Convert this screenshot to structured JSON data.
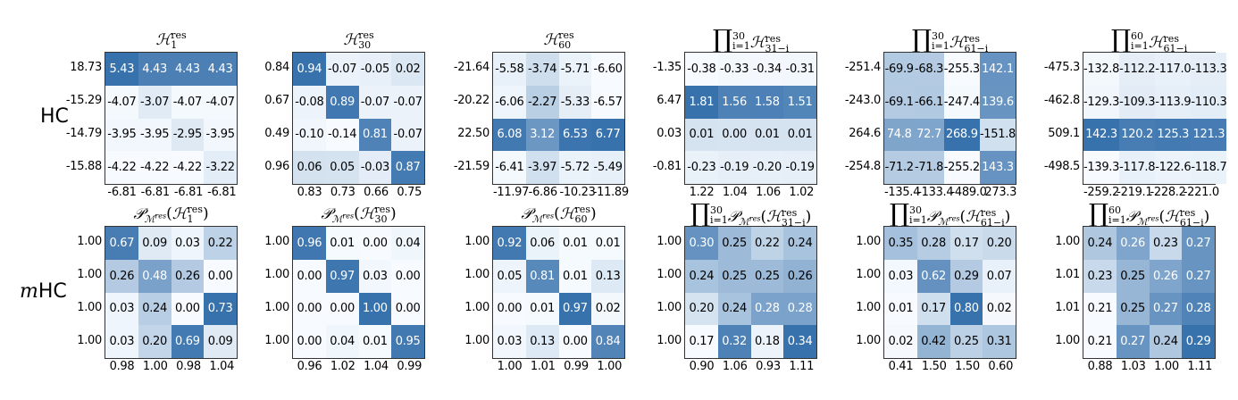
{
  "row_labels": {
    "top": "HC",
    "bottom_prefix": "m",
    "bottom": "HC"
  },
  "colors": {
    "min": "#f7fbff",
    "max": "#3872ad",
    "text_dark": "#000000",
    "text_light": "#ffffff"
  },
  "chart_data": [
    {
      "type": "heatmap",
      "row": "HC",
      "title": [
        {
          "b": "ℋ",
          "cal": true,
          "sub": "1",
          "sup": "res"
        }
      ],
      "row_labels": [
        "18.73",
        "-15.29",
        "-14.79",
        "-15.88"
      ],
      "col_labels": [
        "-6.81",
        "-6.81",
        "-6.81",
        "-6.81"
      ],
      "values": [
        [
          5.43,
          4.43,
          4.43,
          4.43
        ],
        [
          -4.07,
          -3.07,
          -4.07,
          -4.07
        ],
        [
          -3.95,
          -3.95,
          -2.95,
          -3.95
        ],
        [
          -4.22,
          -4.22,
          -4.22,
          -3.22
        ]
      ]
    },
    {
      "type": "heatmap",
      "row": "HC",
      "title": [
        {
          "b": "ℋ",
          "cal": true,
          "sub": "30",
          "sup": "res"
        }
      ],
      "row_labels": [
        "0.84",
        "0.67",
        "0.49",
        "0.96"
      ],
      "col_labels": [
        "0.83",
        "0.73",
        "0.66",
        "0.75"
      ],
      "values": [
        [
          0.94,
          -0.07,
          -0.05,
          0.02
        ],
        [
          -0.08,
          0.89,
          -0.07,
          -0.07
        ],
        [
          -0.1,
          -0.14,
          0.81,
          -0.07
        ],
        [
          0.06,
          0.05,
          -0.03,
          0.87
        ]
      ]
    },
    {
      "type": "heatmap",
      "row": "HC",
      "title": [
        {
          "b": "ℋ",
          "cal": true,
          "sub": "60",
          "sup": "res"
        }
      ],
      "row_labels": [
        "-21.64",
        "-20.22",
        "22.50",
        "-21.59"
      ],
      "col_labels": [
        "-11.97",
        "-6.86",
        "-10.23",
        "-11.89"
      ],
      "values": [
        [
          -5.58,
          -3.74,
          -5.71,
          -6.6
        ],
        [
          -6.06,
          -2.27,
          -5.33,
          -6.57
        ],
        [
          6.08,
          3.12,
          6.53,
          6.77
        ],
        [
          -6.41,
          -3.97,
          -5.72,
          -5.49
        ]
      ]
    },
    {
      "type": "heatmap",
      "row": "HC",
      "title": [
        {
          "b": "∏",
          "big": true,
          "sub": "i=1",
          "sup": "30"
        },
        {
          "b": "ℋ",
          "cal": true,
          "sub": "31−i",
          "sup": "res"
        }
      ],
      "row_labels": [
        "-1.35",
        "6.47",
        "0.03",
        "-0.81"
      ],
      "col_labels": [
        "1.22",
        "1.04",
        "1.06",
        "1.02"
      ],
      "values": [
        [
          -0.38,
          -0.33,
          -0.34,
          -0.31
        ],
        [
          1.81,
          1.56,
          1.58,
          1.51
        ],
        [
          0.01,
          -0.0,
          0.01,
          0.01
        ],
        [
          -0.23,
          -0.19,
          -0.2,
          -0.19
        ]
      ]
    },
    {
      "type": "heatmap",
      "row": "HC",
      "title": [
        {
          "b": "∏",
          "big": true,
          "sub": "i=1",
          "sup": "30"
        },
        {
          "b": "ℋ",
          "cal": true,
          "sub": "61−i",
          "sup": "res"
        }
      ],
      "row_labels": [
        "-251.4",
        "-243.0",
        "264.6",
        "-254.8"
      ],
      "col_labels": [
        "-135.4",
        "-133.4",
        "-489.0",
        "273.3"
      ],
      "values": [
        [
          -69.9,
          -68.3,
          -255.3,
          142.1
        ],
        [
          -69.1,
          -66.1,
          -247.4,
          139.6
        ],
        [
          74.8,
          72.7,
          268.9,
          -151.8
        ],
        [
          -71.2,
          -71.8,
          -255.2,
          143.3
        ]
      ]
    },
    {
      "type": "heatmap",
      "row": "HC",
      "title": [
        {
          "b": "∏",
          "big": true,
          "sub": "i=1",
          "sup": "60"
        },
        {
          "b": "ℋ",
          "cal": true,
          "sub": "61−i",
          "sup": "res"
        }
      ],
      "row_labels": [
        "-475.3",
        "-462.8",
        "509.1",
        "-498.5"
      ],
      "col_labels": [
        "-259.2",
        "-219.1",
        "-228.2",
        "-221.0"
      ],
      "values": [
        [
          -132.8,
          -112.2,
          -117.0,
          -113.3
        ],
        [
          -129.3,
          -109.3,
          -113.9,
          -110.3
        ],
        [
          142.3,
          120.2,
          125.3,
          121.3
        ],
        [
          -139.3,
          -117.8,
          -122.6,
          -118.7
        ]
      ]
    },
    {
      "type": "heatmap",
      "row": "mHC",
      "title": [
        {
          "b": "𝒫",
          "cal": true,
          "sub": "ℳ",
          "subsup": "res"
        },
        {
          "b": "("
        },
        {
          "b": "ℋ",
          "cal": true,
          "sub": "1",
          "sup": "res"
        },
        {
          "b": ")"
        }
      ],
      "row_labels": [
        "1.00",
        "1.00",
        "1.00",
        "1.00"
      ],
      "col_labels": [
        "0.98",
        "1.00",
        "0.98",
        "1.04"
      ],
      "values": [
        [
          0.67,
          0.09,
          0.03,
          0.22
        ],
        [
          0.26,
          0.48,
          0.26,
          0.0
        ],
        [
          0.03,
          0.24,
          0.0,
          0.73
        ],
        [
          0.03,
          0.2,
          0.69,
          0.09
        ]
      ]
    },
    {
      "type": "heatmap",
      "row": "mHC",
      "title": [
        {
          "b": "𝒫",
          "cal": true,
          "sub": "ℳ",
          "subsup": "res"
        },
        {
          "b": "("
        },
        {
          "b": "ℋ",
          "cal": true,
          "sub": "30",
          "sup": "res"
        },
        {
          "b": ")"
        }
      ],
      "row_labels": [
        "1.00",
        "1.00",
        "1.00",
        "1.00"
      ],
      "col_labels": [
        "0.96",
        "1.02",
        "1.04",
        "0.99"
      ],
      "values": [
        [
          0.96,
          0.01,
          0.0,
          0.04
        ],
        [
          0.0,
          0.97,
          0.03,
          0.0
        ],
        [
          0.0,
          0.0,
          1.0,
          0.0
        ],
        [
          0.0,
          0.04,
          0.01,
          0.95
        ]
      ]
    },
    {
      "type": "heatmap",
      "row": "mHC",
      "title": [
        {
          "b": "𝒫",
          "cal": true,
          "sub": "ℳ",
          "subsup": "res"
        },
        {
          "b": "("
        },
        {
          "b": "ℋ",
          "cal": true,
          "sub": "60",
          "sup": "res"
        },
        {
          "b": ")"
        }
      ],
      "row_labels": [
        "1.00",
        "1.00",
        "1.00",
        "1.00"
      ],
      "col_labels": [
        "1.00",
        "1.01",
        "0.99",
        "1.00"
      ],
      "values": [
        [
          0.92,
          0.06,
          0.01,
          0.01
        ],
        [
          0.05,
          0.81,
          0.01,
          0.13
        ],
        [
          0.0,
          0.01,
          0.97,
          0.02
        ],
        [
          0.03,
          0.13,
          0.0,
          0.84
        ]
      ]
    },
    {
      "type": "heatmap",
      "row": "mHC",
      "title": [
        {
          "b": "∏",
          "big": true,
          "sub": "i=1",
          "sup": "30"
        },
        {
          "b": "𝒫",
          "cal": true,
          "sub": "ℳ",
          "subsup": "res"
        },
        {
          "b": "("
        },
        {
          "b": "ℋ",
          "cal": true,
          "sub": "31−i",
          "sup": "res"
        },
        {
          "b": ")"
        }
      ],
      "row_labels": [
        "1.00",
        "1.00",
        "1.00",
        "1.00"
      ],
      "col_labels": [
        "0.90",
        "1.06",
        "0.93",
        "1.11"
      ],
      "values": [
        [
          0.3,
          0.25,
          0.22,
          0.24
        ],
        [
          0.24,
          0.25,
          0.25,
          0.26
        ],
        [
          0.2,
          0.24,
          0.28,
          0.28
        ],
        [
          0.17,
          0.32,
          0.18,
          0.34
        ]
      ]
    },
    {
      "type": "heatmap",
      "row": "mHC",
      "title": [
        {
          "b": "∏",
          "big": true,
          "sub": "i=1",
          "sup": "30"
        },
        {
          "b": "𝒫",
          "cal": true,
          "sub": "ℳ",
          "subsup": "res"
        },
        {
          "b": "("
        },
        {
          "b": "ℋ",
          "cal": true,
          "sub": "61−i",
          "sup": "res"
        },
        {
          "b": ")"
        }
      ],
      "row_labels": [
        "1.00",
        "1.00",
        "1.00",
        "1.00"
      ],
      "col_labels": [
        "0.41",
        "1.50",
        "1.50",
        "0.60"
      ],
      "values": [
        [
          0.35,
          0.28,
          0.17,
          0.2
        ],
        [
          0.03,
          0.62,
          0.29,
          0.07
        ],
        [
          0.01,
          0.17,
          0.8,
          0.02
        ],
        [
          0.02,
          0.42,
          0.25,
          0.31
        ]
      ]
    },
    {
      "type": "heatmap",
      "row": "mHC",
      "title": [
        {
          "b": "∏",
          "big": true,
          "sub": "i=1",
          "sup": "60"
        },
        {
          "b": "𝒫",
          "cal": true,
          "sub": "ℳ",
          "subsup": "res"
        },
        {
          "b": "("
        },
        {
          "b": "ℋ",
          "cal": true,
          "sub": "61−i",
          "sup": "res"
        },
        {
          "b": ")"
        }
      ],
      "row_labels": [
        "1.00",
        "1.01",
        "1.01",
        "1.00"
      ],
      "col_labels": [
        "0.88",
        "1.03",
        "1.00",
        "1.11"
      ],
      "values": [
        [
          0.24,
          0.26,
          0.23,
          0.27
        ],
        [
          0.23,
          0.25,
          0.26,
          0.27
        ],
        [
          0.21,
          0.25,
          0.27,
          0.28
        ],
        [
          0.21,
          0.27,
          0.24,
          0.29
        ]
      ]
    }
  ]
}
